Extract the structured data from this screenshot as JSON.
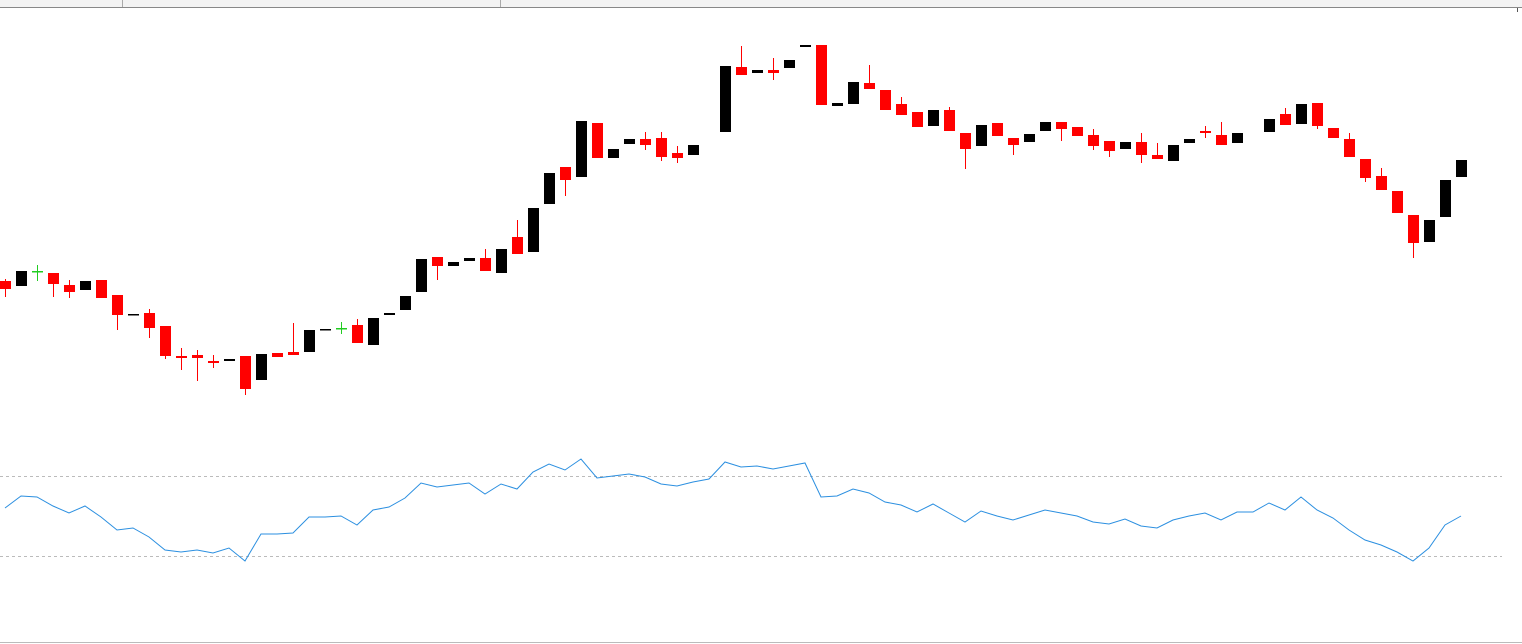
{
  "chart_data": [
    {
      "type": "candlestick",
      "ylim": [
        224,
        644
      ],
      "up_color": "#000000",
      "down_color": "#ff0000",
      "doji_color": "#22cc22",
      "open": [
        363,
        358,
        373,
        371,
        359,
        354,
        364,
        349,
        329,
        331,
        318,
        288,
        289,
        283,
        283,
        288,
        264,
        291,
        292,
        292,
        314,
        316,
        319,
        299,
        329,
        334,
        352,
        387,
        378,
        383,
        386,
        371,
        407,
        392,
        440,
        477,
        467,
        521,
        486,
        500,
        505,
        506,
        491,
        489,
        null,
        512,
        577,
        571,
        574,
        576,
        597,
        599,
        538,
        540,
        561,
        554,
        540,
        532,
        518,
        534,
        511,
        498,
        521,
        506,
        502,
        513,
        522,
        517,
        509,
        503,
        495,
        502,
        489,
        483,
        501,
        513,
        509,
        501,
        null,
        512,
        530,
        520,
        541,
        516,
        505,
        485,
        468,
        453,
        429,
        402,
        427,
        467
      ],
      "high": [
        365,
        373,
        379,
        371,
        364,
        363,
        364,
        349,
        330,
        335,
        318,
        296,
        294,
        289,
        285,
        288,
        290,
        291,
        321,
        314,
        315,
        322,
        325,
        326,
        331,
        348,
        385,
        387,
        382,
        386,
        395,
        395,
        424,
        436,
        471,
        477,
        523,
        521,
        495,
        505,
        512,
        512,
        498,
        499,
        null,
        578,
        598,
        574,
        586,
        584,
        599,
        599,
        541,
        562,
        579,
        554,
        547,
        532,
        534,
        537,
        511,
        519,
        521,
        506,
        510,
        522,
        522,
        517,
        515,
        503,
        502,
        511,
        501,
        499,
        505,
        518,
        522,
        511,
        null,
        525,
        536,
        540,
        541,
        516,
        511,
        485,
        476,
        453,
        429,
        424,
        464,
        484
      ],
      "low": [
        347,
        358,
        363,
        347,
        346,
        354,
        346,
        314,
        329,
        306,
        285,
        274,
        263,
        276,
        283,
        249,
        264,
        287,
        289,
        292,
        314,
        310,
        301,
        299,
        329,
        334,
        352,
        364,
        378,
        383,
        373,
        371,
        390,
        392,
        440,
        448,
        467,
        486,
        486,
        500,
        494,
        483,
        481,
        489,
        null,
        512,
        569,
        571,
        564,
        576,
        597,
        539,
        538,
        540,
        555,
        534,
        529,
        517,
        518,
        513,
        475,
        498,
        508,
        489,
        502,
        513,
        503,
        508,
        494,
        487,
        495,
        481,
        485,
        483,
        501,
        506,
        499,
        501,
        null,
        512,
        519,
        520,
        515,
        506,
        487,
        462,
        454,
        431,
        386,
        402,
        427,
        467
      ],
      "close": [
        355,
        373,
        373,
        360,
        352,
        363,
        346,
        329,
        330,
        316,
        288,
        286,
        286,
        281,
        285,
        255,
        290,
        287,
        289,
        314,
        315,
        316,
        301,
        326,
        331,
        348,
        385,
        378,
        382,
        386,
        373,
        395,
        390,
        436,
        471,
        464,
        523,
        486,
        495,
        505,
        499,
        487,
        486,
        499,
        null,
        578,
        569,
        574,
        571,
        584,
        599,
        539,
        541,
        562,
        555,
        534,
        529,
        517,
        534,
        513,
        495,
        519,
        508,
        499,
        510,
        522,
        515,
        508,
        498,
        493,
        502,
        489,
        485,
        499,
        505,
        511,
        499,
        511,
        null,
        525,
        519,
        540,
        518,
        506,
        487,
        466,
        454,
        431,
        401,
        424,
        464,
        484
      ]
    },
    {
      "type": "line",
      "ylim": [
        0,
        100
      ],
      "color": "#2b8fe0",
      "levels": [
        70,
        30
      ],
      "values": [
        54,
        60,
        59.5,
        55,
        51.5,
        55,
        49.5,
        43,
        44,
        39.5,
        33,
        32,
        33,
        31.5,
        34,
        27.5,
        41,
        41,
        41.5,
        49.5,
        49.5,
        50,
        45.5,
        53,
        54.5,
        59,
        66.5,
        64.5,
        65.5,
        66.5,
        61,
        66,
        63.5,
        72,
        76,
        73,
        78.5,
        69,
        70,
        71,
        69.5,
        66,
        65,
        67,
        68.5,
        77,
        74.5,
        75,
        73.5,
        75,
        76.5,
        59.5,
        60,
        63.5,
        61.5,
        57,
        55.5,
        52,
        56,
        51.5,
        47,
        52.5,
        50,
        48,
        50.5,
        53,
        51.5,
        50,
        47,
        46,
        48.5,
        45,
        44,
        48,
        50,
        51.5,
        48,
        52,
        52,
        56.5,
        53,
        59.5,
        53,
        49,
        43,
        38,
        35.5,
        32,
        27.5,
        34,
        45.5,
        50
      ]
    }
  ]
}
